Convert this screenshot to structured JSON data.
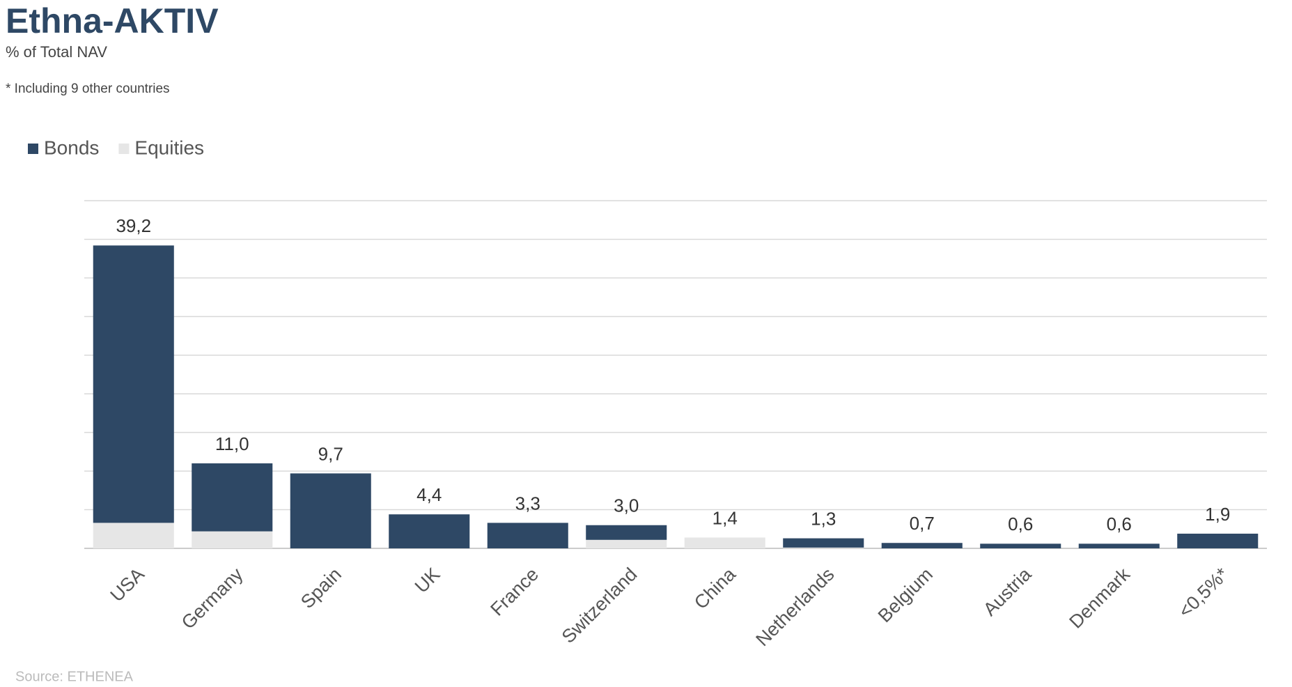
{
  "chart_data": {
    "type": "stacked_bar",
    "title": "Ethna-AKTIV",
    "subtitle": "% of Total NAV",
    "note": "* Including 9 other countries",
    "source": "Source: ETHENEA",
    "categories": [
      "USA",
      "Germany",
      "Spain",
      "UK",
      "France",
      "Switzerland",
      "China",
      "Netherlands",
      "Belgium",
      "Austria",
      "Denmark",
      "<0,5%*"
    ],
    "series": [
      {
        "name": "Bonds",
        "color": "#2e4865",
        "values": [
          35.9,
          8.8,
          9.7,
          4.4,
          3.3,
          1.9,
          0,
          1.2,
          0.7,
          0.6,
          0.6,
          1.9
        ]
      },
      {
        "name": "Equities",
        "color": "#e6e6e6",
        "values": [
          3.3,
          2.2,
          0,
          0,
          0,
          1.1,
          1.4,
          0.1,
          0,
          0,
          0,
          0
        ]
      }
    ],
    "totals": [
      39.2,
      11.0,
      9.7,
      4.4,
      3.3,
      3.0,
      1.4,
      1.3,
      0.7,
      0.6,
      0.6,
      1.9
    ],
    "total_labels": [
      "39,2",
      "11,0",
      "9,7",
      "4,4",
      "3,3",
      "3,0",
      "1,4",
      "1,3",
      "0,7",
      "0,6",
      "0,6",
      "1,9"
    ],
    "ylim": [
      0,
      45
    ],
    "yticks": [
      0,
      5,
      10,
      15,
      20,
      25,
      30,
      35,
      40,
      45
    ],
    "grid": true,
    "legend": "top-left"
  }
}
